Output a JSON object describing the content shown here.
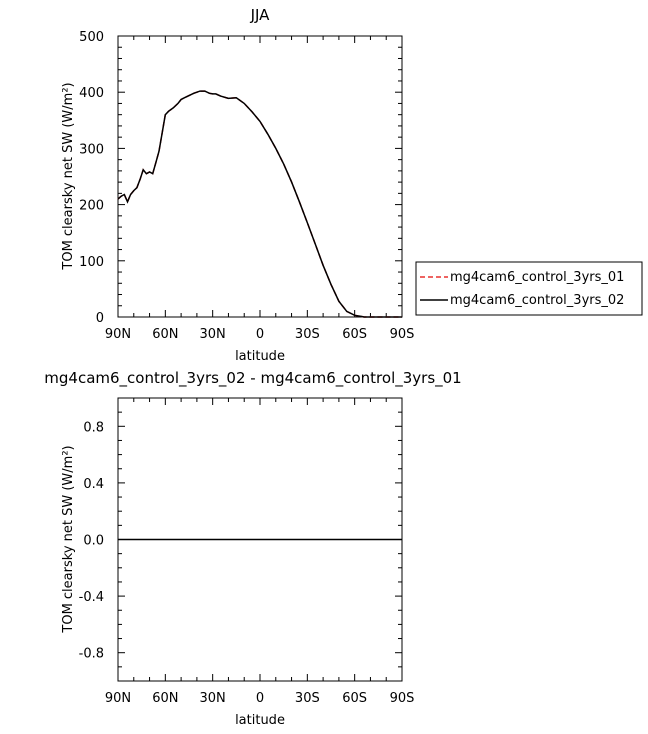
{
  "chart_data": [
    {
      "type": "line",
      "title": "JJA",
      "xlabel": "latitude",
      "ylabel": "TOM clearsky net SW (W/m²)",
      "xlim": [
        90,
        -90
      ],
      "ylim": [
        0,
        500
      ],
      "x_ticks": [
        90,
        60,
        30,
        0,
        -30,
        -60,
        -90
      ],
      "x_tick_labels": [
        "90N",
        "60N",
        "30N",
        "0",
        "30S",
        "60S",
        "90S"
      ],
      "y_ticks": [
        0,
        100,
        200,
        300,
        400,
        500
      ],
      "y_tick_labels": [
        "0",
        "100",
        "200",
        "300",
        "400",
        "500"
      ],
      "legend_position": "right",
      "series": [
        {
          "name": "mg4cam6_control_3yrs_01",
          "color": "#e8302f",
          "dash": "dashed",
          "x": [
            90,
            88,
            86,
            84,
            82,
            80,
            78,
            76,
            74,
            72,
            70,
            68,
            66,
            64,
            62,
            60,
            58,
            55,
            52,
            50,
            48,
            45,
            42,
            40,
            38,
            35,
            32,
            30,
            28,
            25,
            20,
            15,
            10,
            5,
            0,
            -5,
            -10,
            -15,
            -20,
            -25,
            -30,
            -35,
            -40,
            -45,
            -50,
            -55,
            -60,
            -62,
            -64,
            -66,
            -68,
            -70,
            -72,
            -74,
            -76,
            -78,
            -80,
            -90
          ],
          "y": [
            210,
            215,
            218,
            205,
            218,
            225,
            230,
            245,
            262,
            255,
            258,
            255,
            275,
            295,
            328,
            360,
            366,
            372,
            380,
            387,
            390,
            394,
            398,
            400,
            402,
            402,
            398,
            397,
            397,
            393,
            389,
            390,
            380,
            365,
            348,
            325,
            300,
            272,
            240,
            205,
            168,
            130,
            92,
            58,
            28,
            10,
            3,
            2,
            1,
            0,
            0,
            0,
            0,
            0,
            0,
            0,
            0,
            0
          ]
        },
        {
          "name": "mg4cam6_control_3yrs_02",
          "color": "#000000",
          "dash": "solid",
          "x": [
            90,
            88,
            86,
            84,
            82,
            80,
            78,
            76,
            74,
            72,
            70,
            68,
            66,
            64,
            62,
            60,
            58,
            55,
            52,
            50,
            48,
            45,
            42,
            40,
            38,
            35,
            32,
            30,
            28,
            25,
            20,
            15,
            10,
            5,
            0,
            -5,
            -10,
            -15,
            -20,
            -25,
            -30,
            -35,
            -40,
            -45,
            -50,
            -55,
            -60,
            -62,
            -64,
            -66,
            -68,
            -70,
            -72,
            -74,
            -76,
            -78,
            -80,
            -90
          ],
          "y": [
            210,
            215,
            218,
            205,
            218,
            225,
            230,
            245,
            262,
            255,
            258,
            255,
            275,
            295,
            328,
            360,
            366,
            372,
            380,
            387,
            390,
            394,
            398,
            400,
            402,
            402,
            398,
            397,
            397,
            393,
            389,
            390,
            380,
            365,
            348,
            325,
            300,
            272,
            240,
            205,
            168,
            130,
            92,
            58,
            28,
            10,
            3,
            2,
            1,
            0,
            0,
            0,
            0,
            0,
            0,
            0,
            0,
            0
          ]
        }
      ]
    },
    {
      "type": "line",
      "title": "mg4cam6_control_3yrs_02 - mg4cam6_control_3yrs_01",
      "xlabel": "latitude",
      "ylabel": "TOM clearsky net SW (W/m²)",
      "xlim": [
        90,
        -90
      ],
      "ylim": [
        -1,
        1
      ],
      "x_ticks": [
        90,
        60,
        30,
        0,
        -30,
        -60,
        -90
      ],
      "x_tick_labels": [
        "90N",
        "60N",
        "30N",
        "0",
        "30S",
        "60S",
        "90S"
      ],
      "y_ticks": [
        0.8,
        0.4,
        0.0,
        -0.4,
        -0.8
      ],
      "y_tick_labels": [
        "0.8",
        "0.4",
        "0.0",
        "-0.4",
        "-0.8"
      ],
      "series": [
        {
          "color": "#000000",
          "dash": "solid",
          "x": [
            90,
            -90
          ],
          "y": [
            0,
            0
          ]
        }
      ]
    }
  ]
}
